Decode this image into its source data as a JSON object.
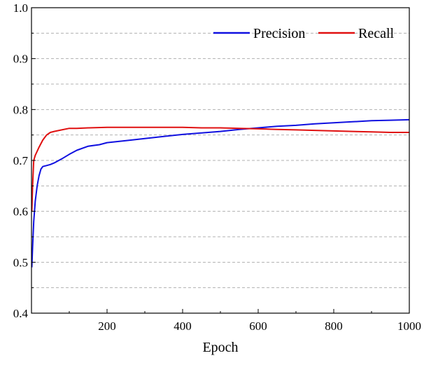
{
  "chart_data": {
    "type": "line",
    "title": "",
    "xlabel": "Epoch",
    "ylabel": "",
    "xlim": [
      0,
      1000
    ],
    "ylim": [
      0.4,
      1.0
    ],
    "xticks": [
      200,
      400,
      600,
      800,
      1000
    ],
    "xtick_labels": [
      "200",
      "400",
      "600",
      "800",
      "1000"
    ],
    "yticks": [
      0.4,
      0.5,
      0.6,
      0.7,
      0.8,
      0.9,
      1.0
    ],
    "ytick_labels": [
      "0.4",
      "0.5",
      "0.6",
      "0.7",
      "0.8",
      "0.9",
      "1.0"
    ],
    "grid": "horizontal dashed",
    "legend_position": "top-right",
    "series": [
      {
        "name": "Precision",
        "color": "#1010e0",
        "x": [
          1,
          3,
          6,
          10,
          15,
          20,
          25,
          30,
          40,
          50,
          60,
          80,
          100,
          120,
          150,
          180,
          200,
          250,
          300,
          350,
          400,
          450,
          500,
          550,
          600,
          650,
          700,
          750,
          800,
          850,
          900,
          950,
          1000
        ],
        "y": [
          0.49,
          0.53,
          0.58,
          0.62,
          0.65,
          0.67,
          0.683,
          0.688,
          0.69,
          0.692,
          0.695,
          0.703,
          0.712,
          0.72,
          0.728,
          0.731,
          0.735,
          0.739,
          0.743,
          0.747,
          0.751,
          0.754,
          0.757,
          0.761,
          0.764,
          0.767,
          0.769,
          0.772,
          0.774,
          0.776,
          0.778,
          0.779,
          0.78
        ]
      },
      {
        "name": "Recall",
        "color": "#e01010",
        "x": [
          1,
          3,
          6,
          10,
          15,
          20,
          25,
          30,
          40,
          50,
          60,
          80,
          100,
          120,
          150,
          200,
          250,
          300,
          350,
          400,
          450,
          500,
          550,
          600,
          650,
          700,
          750,
          800,
          850,
          900,
          950,
          1000
        ],
        "y": [
          0.6,
          0.65,
          0.7,
          0.71,
          0.718,
          0.726,
          0.733,
          0.74,
          0.75,
          0.755,
          0.757,
          0.76,
          0.763,
          0.763,
          0.764,
          0.765,
          0.765,
          0.765,
          0.765,
          0.765,
          0.764,
          0.764,
          0.763,
          0.762,
          0.761,
          0.76,
          0.759,
          0.758,
          0.757,
          0.756,
          0.755,
          0.755
        ]
      }
    ]
  }
}
